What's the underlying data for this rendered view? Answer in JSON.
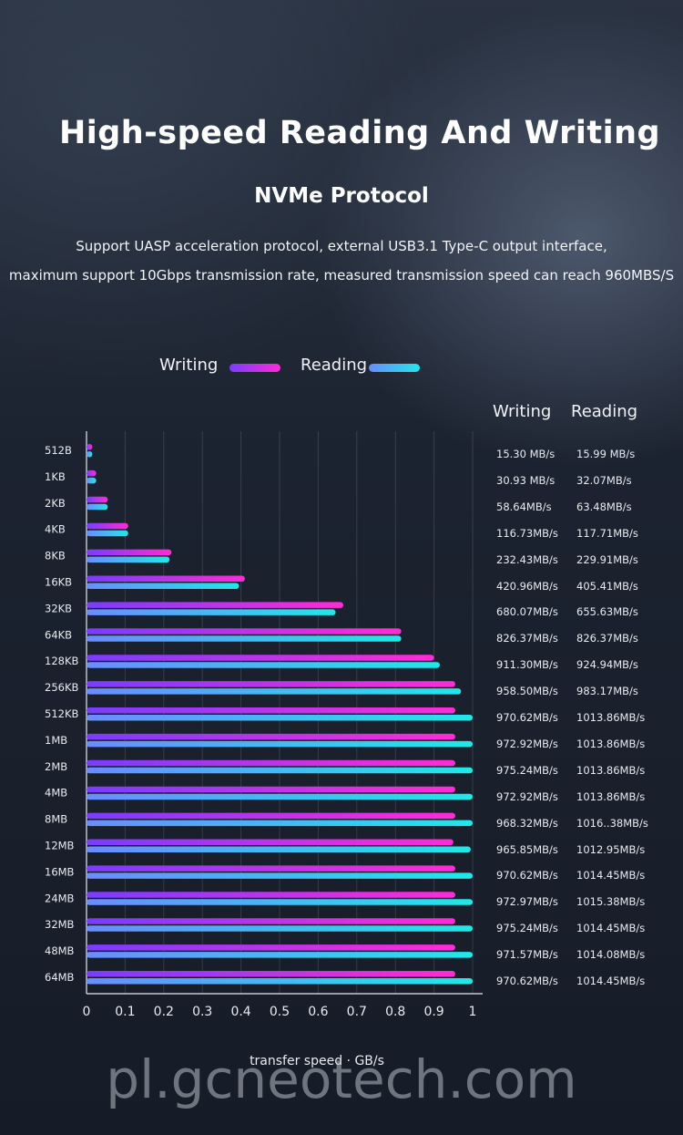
{
  "header": {
    "title": "High-speed Reading And Writing",
    "subtitle": "NVMe Protocol",
    "description_line1": "Support UASP acceleration protocol, external USB3.1 Type-C output interface,",
    "description_line2": "maximum support 10Gbps transmission rate, measured transmission speed can reach 960MBS/S"
  },
  "table": {
    "writing_header": "Writing",
    "reading_header": "Reading"
  },
  "colors": {
    "writing_start": "#7a3cff",
    "writing_end": "#ff2bd6",
    "reading_start": "#6a8cff",
    "reading_end": "#1fe8e8"
  },
  "chart_data": {
    "type": "bar",
    "orientation": "horizontal",
    "xlabel": "transfer speed · GB/s",
    "xlim": [
      0,
      1
    ],
    "xticks": [
      "0",
      "0.1",
      "0.2",
      "0.3",
      "0.4",
      "0.5",
      "0.6",
      "0.7",
      "0.8",
      "0.9",
      "1"
    ],
    "grid": true,
    "legend": "top",
    "categories": [
      "512B",
      "1KB",
      "2KB",
      "4KB",
      "8KB",
      "16KB",
      "32KB",
      "64KB",
      "128KB",
      "256KB",
      "512KB",
      "1MB",
      "2MB",
      "4MB",
      "8MB",
      "12MB",
      "16MB",
      "24MB",
      "32MB",
      "48MB",
      "64MB"
    ],
    "series": [
      {
        "name": "Writing",
        "values": [
          0.015,
          0.025,
          0.055,
          0.108,
          0.22,
          0.41,
          0.665,
          0.815,
          0.9,
          0.955,
          0.955,
          0.955,
          0.955,
          0.955,
          0.955,
          0.95,
          0.955,
          0.955,
          0.955,
          0.955,
          0.955
        ],
        "labels": [
          "15.30 MB/s",
          "30.93 MB/s",
          "58.64MB/s",
          "116.73MB/s",
          "232.43MB/s",
          "420.96MB/s",
          "680.07MB/s",
          "826.37MB/s",
          "911.30MB/s",
          "958.50MB/s",
          "970.62MB/s",
          "972.92MB/s",
          "975.24MB/s",
          "972.92MB/s",
          "968.32MB/s",
          "965.85MB/s",
          "970.62MB/s",
          "972.97MB/s",
          "975.24MB/s",
          "971.57MB/s",
          "970.62MB/s"
        ]
      },
      {
        "name": "Reading",
        "values": [
          0.015,
          0.025,
          0.055,
          0.108,
          0.215,
          0.395,
          0.645,
          0.815,
          0.915,
          0.97,
          1.0,
          1.0,
          1.0,
          1.0,
          1.0,
          0.995,
          1.0,
          1.0,
          1.0,
          1.0,
          1.0
        ],
        "labels": [
          "15.99 MB/s",
          "32.07MB/s",
          "63.48MB/s",
          "117.71MB/s",
          "229.91MB/s",
          "405.41MB/s",
          "655.63MB/s",
          "826.37MB/s",
          "924.94MB/s",
          "983.17MB/s",
          "1013.86MB/s",
          "1013.86MB/s",
          "1013.86MB/s",
          "1013.86MB/s",
          "1016..38MB/s",
          "1012.95MB/s",
          "1014.45MB/s",
          "1015.38MB/s",
          "1014.45MB/s",
          "1014.08MB/s",
          "1014.45MB/s"
        ]
      }
    ]
  },
  "watermark": "pl.gcneotech.com"
}
